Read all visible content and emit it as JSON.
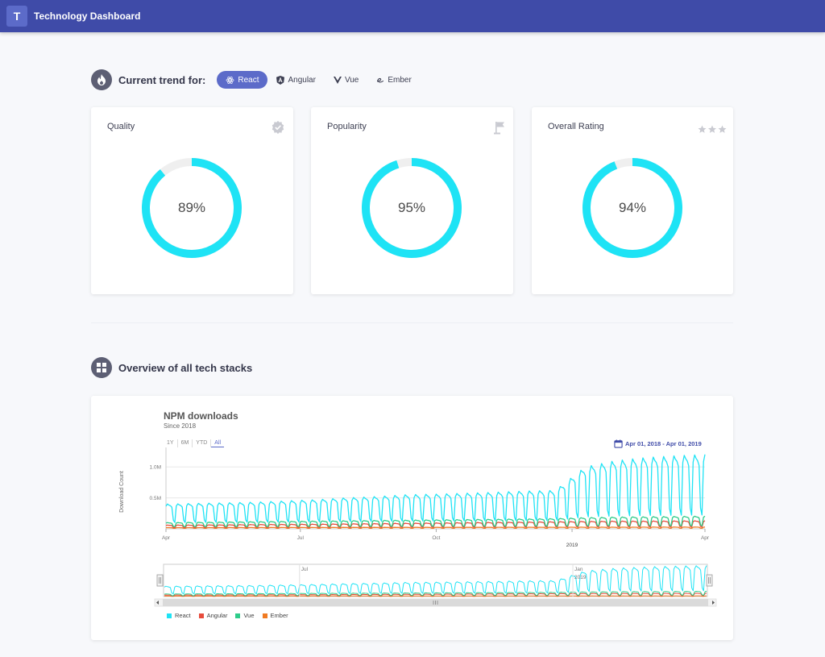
{
  "app": {
    "logo_letter": "T",
    "title": "Technology Dashboard"
  },
  "trend": {
    "title": "Current trend for:",
    "tabs": [
      {
        "label": "React",
        "icon": "react-icon",
        "active": true
      },
      {
        "label": "Angular",
        "icon": "angular-icon",
        "active": false
      },
      {
        "label": "Vue",
        "icon": "vue-icon",
        "active": false
      },
      {
        "label": "Ember",
        "icon": "ember-icon",
        "active": false
      }
    ]
  },
  "cards": [
    {
      "title": "Quality",
      "value": 89,
      "value_text": "89%",
      "icon": "check-badge-icon"
    },
    {
      "title": "Popularity",
      "value": 95,
      "value_text": "95%",
      "icon": "flag-icon"
    },
    {
      "title": "Overall Rating",
      "value": 94,
      "value_text": "94%",
      "icon": "stars-icon"
    }
  ],
  "overview": {
    "title": "Overview of all tech stacks",
    "chart_title": "NPM downloads",
    "chart_subtitle": "Since 2018",
    "range_buttons": [
      "1Y",
      "6M",
      "YTD",
      "All"
    ],
    "active_range": "All",
    "date_range": "Apr 01, 2018 - Apr 01, 2019",
    "ylabel": "Download Count"
  },
  "colors": {
    "react": "#1ee3f5",
    "angular": "#e74c3c",
    "vue": "#2ecc8a",
    "ember": "#f07b22",
    "accent": "#5c6bc9",
    "appbar": "#3f4ba8"
  },
  "chart_data": {
    "type": "line",
    "title": "NPM downloads",
    "subtitle": "Since 2018",
    "ylabel": "Download Count",
    "xlim": [
      "2018-04-01",
      "2019-04-01"
    ],
    "ylim": [
      0,
      1250000
    ],
    "y_ticks": [
      {
        "value": 500000,
        "label": "0.5M"
      },
      {
        "value": 1000000,
        "label": "1.0M"
      }
    ],
    "x_ticks": [
      {
        "value": "2018-04-01",
        "label": "Apr"
      },
      {
        "value": "2018-07-01",
        "label": "Jul"
      },
      {
        "value": "2018-10-01",
        "label": "Oct"
      },
      {
        "value": "2019-01-01",
        "label": "2019"
      },
      {
        "value": "2019-04-01",
        "label": "Apr"
      }
    ],
    "navigator_ticks": [
      {
        "value": "2018-07-01",
        "label": "Jul"
      },
      {
        "value": "2019-01-01",
        "label": "Jan 2019"
      }
    ],
    "series": [
      {
        "name": "React",
        "weekly_peak": [
          400000,
          410000,
          420000,
          430000,
          450000,
          470000,
          500000,
          520000,
          550000,
          560000,
          575000,
          590000,
          610000,
          620000,
          1000000,
          1100000,
          1150000,
          1180000,
          1200000
        ],
        "weekly_low": 50000
      },
      {
        "name": "Angular",
        "weekly_peak": [
          60000,
          62000,
          65000,
          70000,
          72000,
          75000,
          80000,
          85000,
          90000,
          95000,
          100000,
          105000,
          110000,
          115000,
          120000,
          125000,
          125000,
          128000,
          130000
        ],
        "weekly_low": 10000
      },
      {
        "name": "Vue",
        "weekly_peak": [
          100000,
          105000,
          110000,
          115000,
          120000,
          125000,
          130000,
          135000,
          140000,
          145000,
          150000,
          155000,
          160000,
          165000,
          180000,
          190000,
          195000,
          200000,
          205000
        ],
        "weekly_low": 20000
      },
      {
        "name": "Ember",
        "weekly_peak": [
          20000,
          20000,
          21000,
          21000,
          22000,
          22000,
          23000,
          23000,
          24000,
          24000,
          25000,
          25000,
          26000,
          26000,
          27000,
          27000,
          28000,
          28000,
          29000
        ],
        "weekly_low": 5000
      }
    ]
  }
}
